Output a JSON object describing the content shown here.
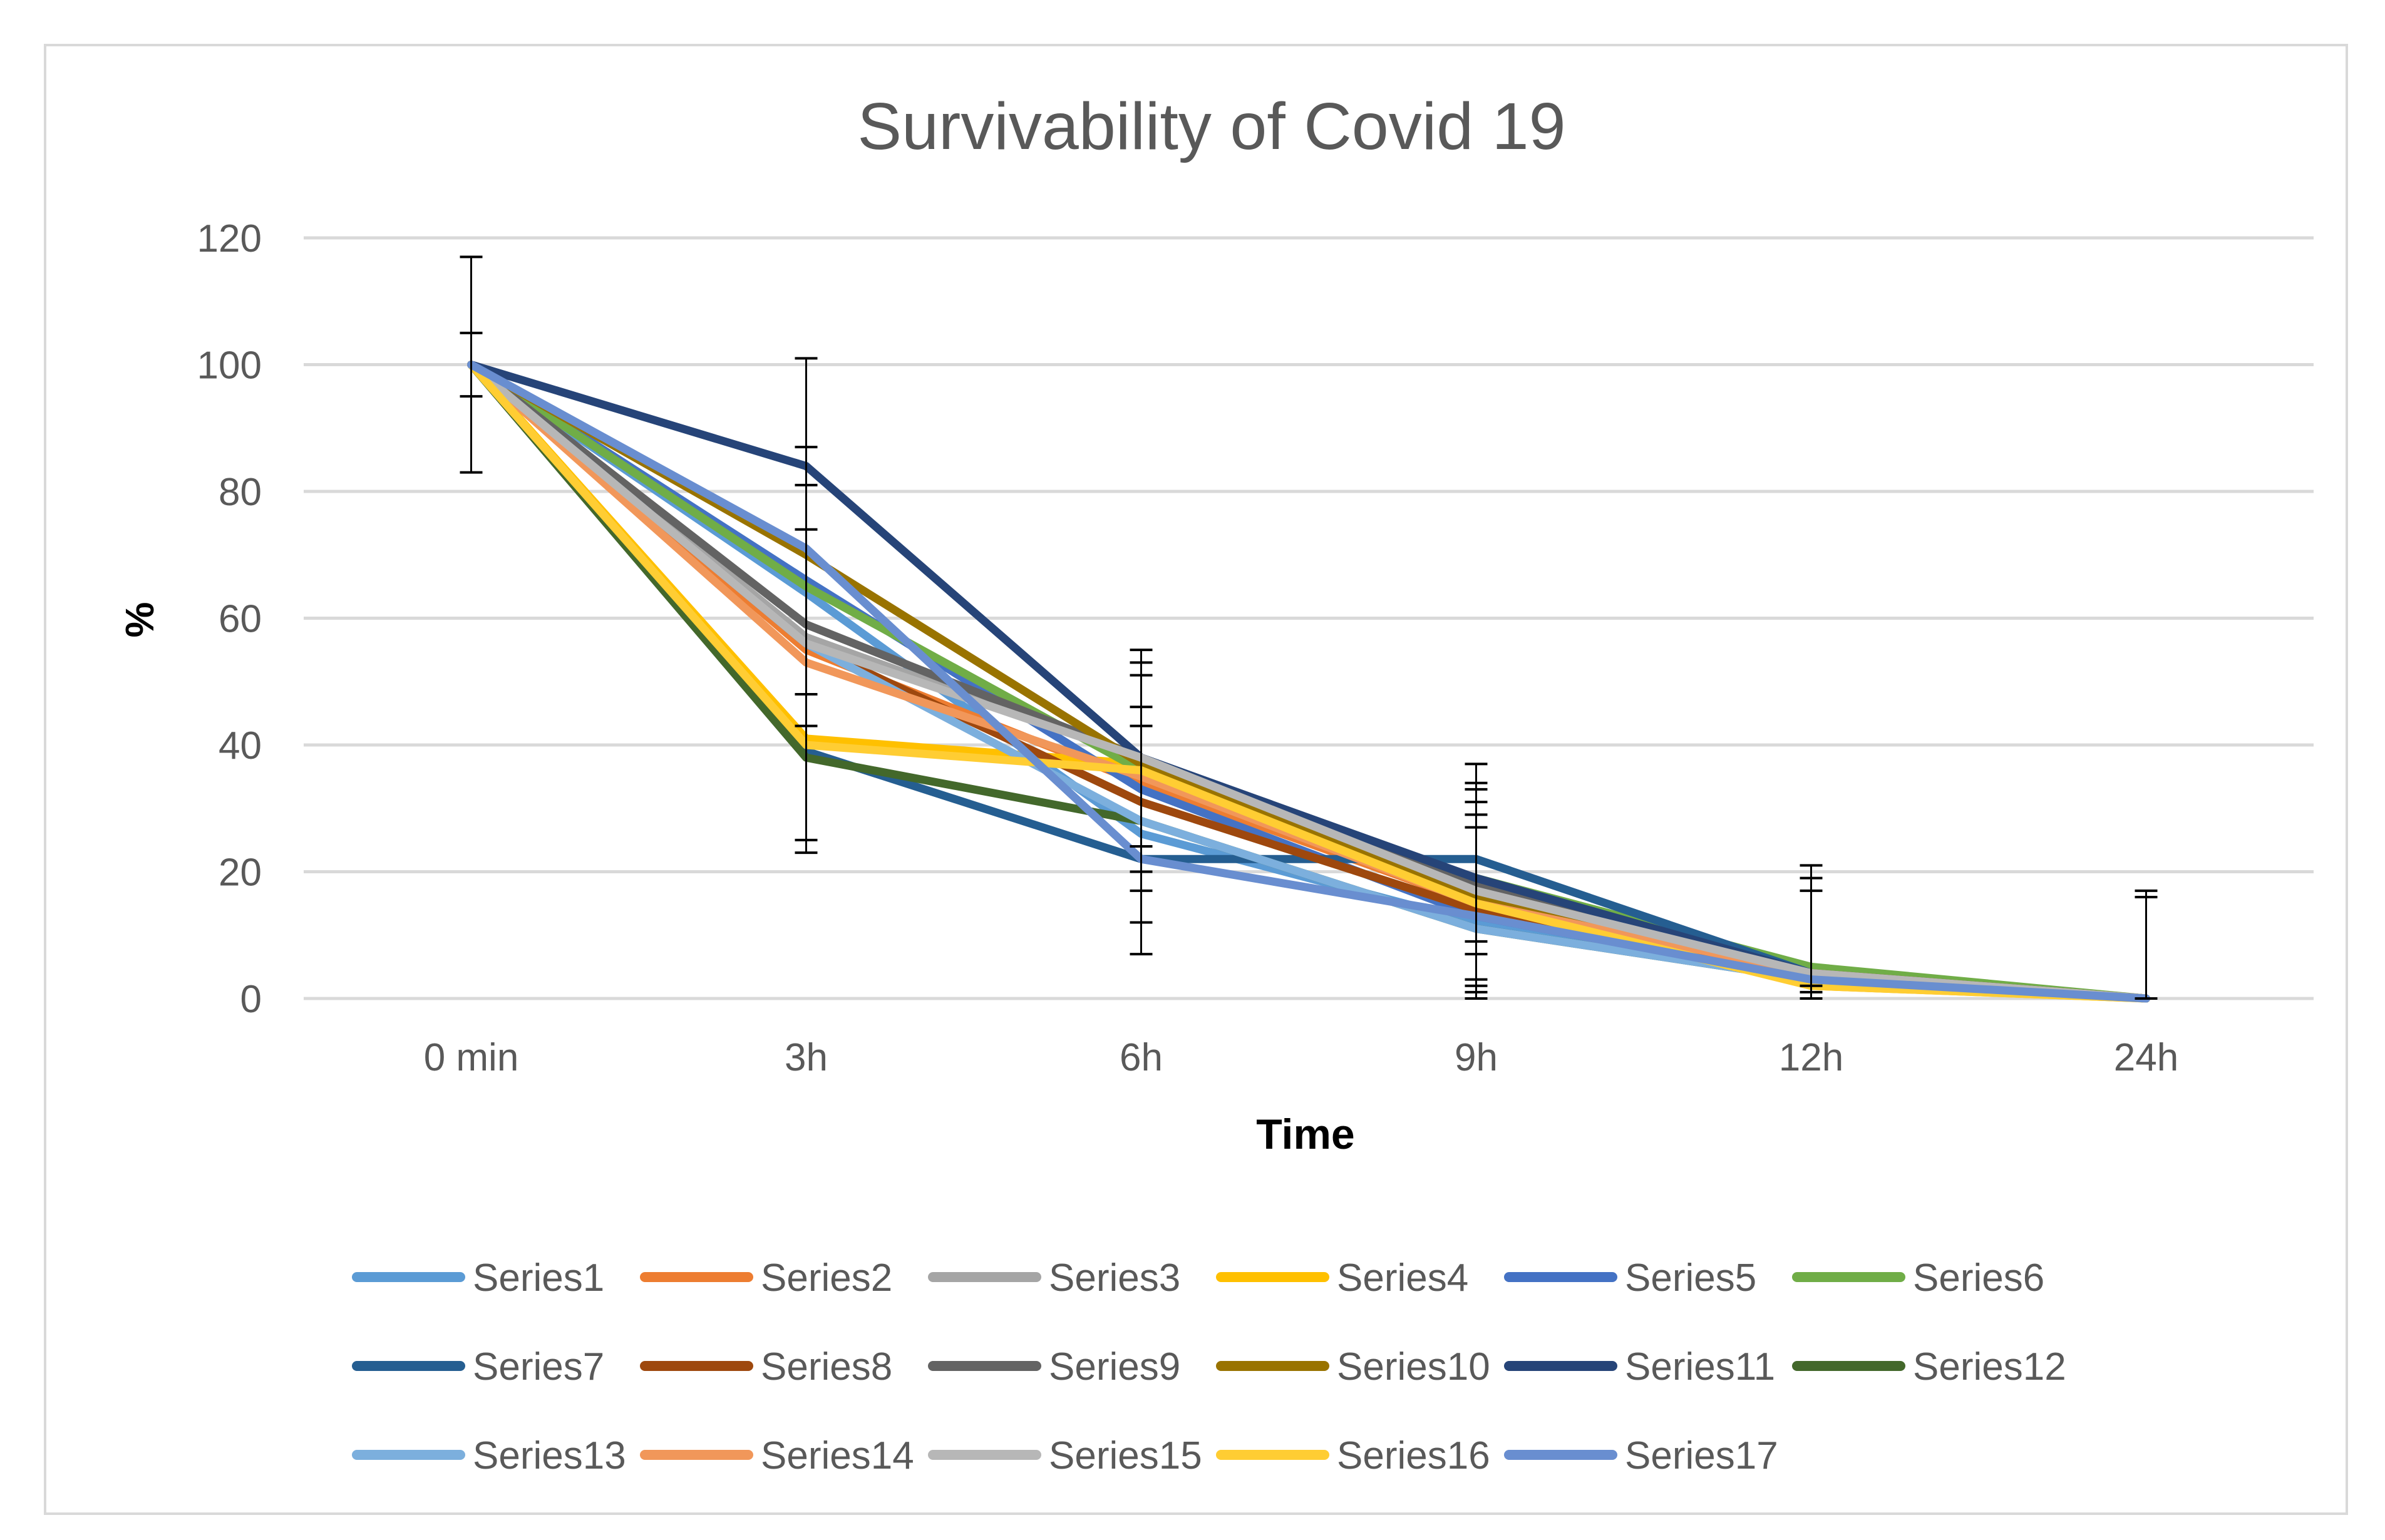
{
  "chart_data": {
    "type": "line",
    "title": "Survivability of Covid 19",
    "xlabel": "Time",
    "ylabel": "%",
    "categories": [
      "0 min",
      "3h",
      "6h",
      "9h",
      "12h",
      "24h"
    ],
    "ylim": [
      0,
      120
    ],
    "yticks": [
      0,
      20,
      40,
      60,
      80,
      100,
      120
    ],
    "grid": true,
    "legend_position": "bottom",
    "series": [
      {
        "name": "Series1",
        "color": "#5B9BD5",
        "values": [
          100,
          64,
          26,
          12,
          3,
          0
        ]
      },
      {
        "name": "Series2",
        "color": "#ED7D31",
        "values": [
          100,
          55,
          34,
          15,
          4,
          0
        ]
      },
      {
        "name": "Series3",
        "color": "#A5A5A5",
        "values": [
          100,
          57,
          38,
          17,
          4,
          0
        ]
      },
      {
        "name": "Series4",
        "color": "#FFC000",
        "values": [
          100,
          41,
          37,
          16,
          2,
          0
        ]
      },
      {
        "name": "Series5",
        "color": "#4472C4",
        "values": [
          100,
          66,
          33,
          13,
          3,
          0
        ]
      },
      {
        "name": "Series6",
        "color": "#70AD47",
        "values": [
          100,
          65,
          36,
          19,
          5,
          0
        ]
      },
      {
        "name": "Series7",
        "color": "#255E91",
        "values": [
          100,
          39,
          22,
          22,
          4,
          0
        ]
      },
      {
        "name": "Series8",
        "color": "#9E480E",
        "values": [
          100,
          56,
          31,
          14,
          4,
          0
        ]
      },
      {
        "name": "Series9",
        "color": "#636363",
        "values": [
          100,
          59,
          38,
          18,
          4,
          0
        ]
      },
      {
        "name": "Series10",
        "color": "#997300",
        "values": [
          100,
          70,
          37,
          16,
          4,
          0
        ]
      },
      {
        "name": "Series11",
        "color": "#264478",
        "values": [
          100,
          84,
          38,
          19,
          4,
          0
        ]
      },
      {
        "name": "Series12",
        "color": "#43682B",
        "values": [
          100,
          38,
          28,
          11,
          3,
          0
        ]
      },
      {
        "name": "Series13",
        "color": "#7CAFDD",
        "values": [
          100,
          56,
          28,
          11,
          3,
          0
        ]
      },
      {
        "name": "Series14",
        "color": "#F1975A",
        "values": [
          100,
          53,
          35,
          15,
          4,
          0
        ]
      },
      {
        "name": "Series15",
        "color": "#B7B7B7",
        "values": [
          100,
          56,
          38,
          17,
          4,
          0
        ]
      },
      {
        "name": "Series16",
        "color": "#FFCD33",
        "values": [
          100,
          40,
          36,
          15,
          2,
          0
        ]
      },
      {
        "name": "Series17",
        "color": "#698ED0",
        "values": [
          100,
          71,
          22,
          13,
          3,
          0
        ]
      }
    ],
    "error_bars": [
      {
        "x": "0 min",
        "low": 83,
        "high": 117
      },
      {
        "x": "0 min",
        "low": 95,
        "high": 105
      },
      {
        "x": "3h",
        "low": 23,
        "high": 101
      },
      {
        "x": "3h",
        "low": 25,
        "high": 87
      },
      {
        "x": "3h",
        "low": 43,
        "high": 81
      },
      {
        "x": "3h",
        "low": 48,
        "high": 74
      },
      {
        "x": "6h",
        "low": 7,
        "high": 55
      },
      {
        "x": "6h",
        "low": 12,
        "high": 53
      },
      {
        "x": "6h",
        "low": 17,
        "high": 51
      },
      {
        "x": "6h",
        "low": 20,
        "high": 46
      },
      {
        "x": "6h",
        "low": 24,
        "high": 43
      },
      {
        "x": "9h",
        "low": 0,
        "high": 37
      },
      {
        "x": "9h",
        "low": 1,
        "high": 34
      },
      {
        "x": "9h",
        "low": 2,
        "high": 33
      },
      {
        "x": "9h",
        "low": 3,
        "high": 31
      },
      {
        "x": "9h",
        "low": 7,
        "high": 29
      },
      {
        "x": "9h",
        "low": 9,
        "high": 27
      },
      {
        "x": "12h",
        "low": 0,
        "high": 21
      },
      {
        "x": "12h",
        "low": 1,
        "high": 19
      },
      {
        "x": "12h",
        "low": 2,
        "high": 17
      },
      {
        "x": "24h",
        "low": 0,
        "high": 17
      },
      {
        "x": "24h",
        "low": 0,
        "high": 16
      }
    ]
  }
}
